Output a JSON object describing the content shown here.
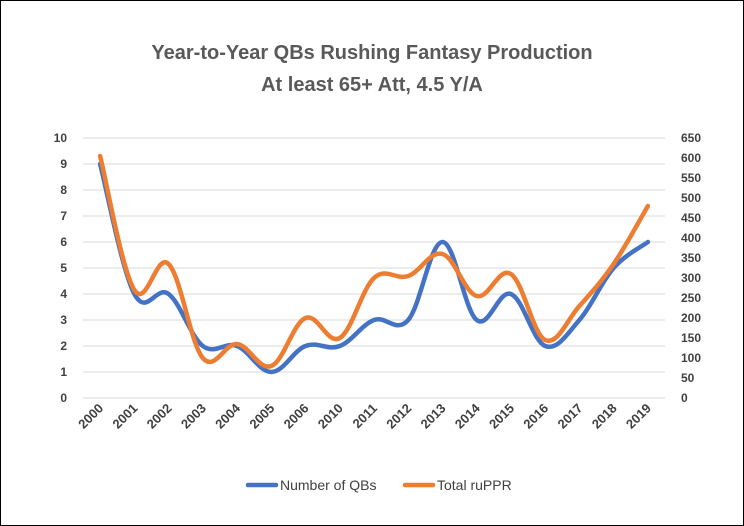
{
  "chart_data": {
    "type": "line",
    "title": "Year-to-Year QBs Rushing Fantasy Production",
    "subtitle": "At least 65+ Att, 4.5 Y/A",
    "categories": [
      "2000",
      "2001",
      "2002",
      "2003",
      "2004",
      "2005",
      "2006",
      "2010",
      "2011",
      "2012",
      "2013",
      "2014",
      "2015",
      "2016",
      "2017",
      "2018",
      "2019"
    ],
    "series": [
      {
        "name": "Number of QBs",
        "axis": "left",
        "color": "#4472c4",
        "values": [
          9,
          4,
          4,
          2,
          2,
          1,
          2,
          2,
          3,
          3,
          6,
          3,
          4,
          2,
          3,
          5,
          6
        ]
      },
      {
        "name": "Total ruPPR",
        "axis": "right",
        "color": "#ed7d31",
        "values": [
          605,
          270,
          335,
          100,
          135,
          80,
          200,
          150,
          300,
          305,
          360,
          255,
          310,
          145,
          230,
          335,
          480
        ]
      }
    ],
    "y_left": {
      "ylim": [
        0,
        10
      ],
      "ticks": [
        "0",
        "1",
        "2",
        "3",
        "4",
        "5",
        "6",
        "7",
        "8",
        "9",
        "10"
      ]
    },
    "y_right": {
      "ylim": [
        0,
        650
      ],
      "ticks": [
        "0",
        "50",
        "100",
        "150",
        "200",
        "250",
        "300",
        "350",
        "400",
        "450",
        "500",
        "550",
        "600",
        "650"
      ]
    },
    "grid": true,
    "legend": "bottom"
  }
}
